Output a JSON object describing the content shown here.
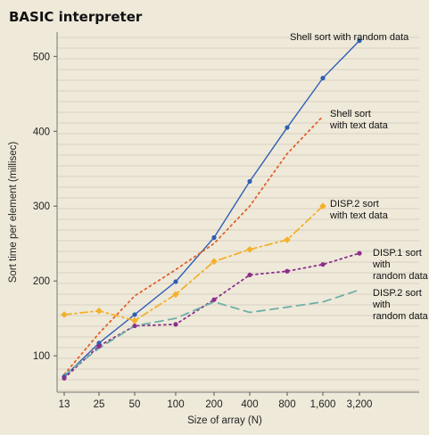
{
  "chart_data": {
    "type": "line",
    "title": "BASIC interpreter",
    "xlabel": "Size of array (N)",
    "ylabel": "Sort time per element (millisec)",
    "categories": [
      "13",
      "25",
      "50",
      "100",
      "200",
      "400",
      "800",
      "1,600",
      "3,200"
    ],
    "x_scale": "log2",
    "ylim": [
      70,
      540
    ],
    "yticks": [
      100,
      200,
      300,
      400,
      500
    ],
    "grid": true,
    "legend": "direct labels at line ends",
    "series": [
      {
        "name": "Shell sort with random data",
        "label_lines": [
          "Shell sort with random data"
        ],
        "color": "#2f5fb3",
        "style": "solid",
        "marker": "circle",
        "values": [
          72,
          117,
          155,
          199,
          258,
          333,
          405,
          471,
          521
        ]
      },
      {
        "name": "Shell sort with text data",
        "label_lines": [
          "Shell sort",
          "with text data"
        ],
        "color": "#e0622a",
        "style": "dotted",
        "marker": "none",
        "values": [
          75,
          130,
          180,
          215,
          250,
          300,
          370,
          420,
          null
        ]
      },
      {
        "name": "DISP.2 sort with text data",
        "label_lines": [
          "DISP.2 sort",
          "with text data"
        ],
        "color": "#f2b02c",
        "style": "dashdot",
        "marker": "diamond",
        "values": [
          155,
          160,
          147,
          182,
          226,
          242,
          255,
          300,
          null
        ]
      },
      {
        "name": "DISP.1 sort with random data",
        "label_lines": [
          "DISP.1 sort",
          "with",
          "random data"
        ],
        "color": "#8b2f8b",
        "style": "dotted",
        "marker": "circle",
        "values": [
          70,
          113,
          140,
          142,
          175,
          208,
          213,
          222,
          237
        ]
      },
      {
        "name": "DISP.2 sort with random data",
        "label_lines": [
          "DISP.2 sort",
          "with",
          "random data"
        ],
        "color": "#6fb0a8",
        "style": "dashed",
        "marker": "none",
        "values": [
          74,
          110,
          140,
          150,
          172,
          158,
          165,
          172,
          188
        ]
      }
    ]
  }
}
